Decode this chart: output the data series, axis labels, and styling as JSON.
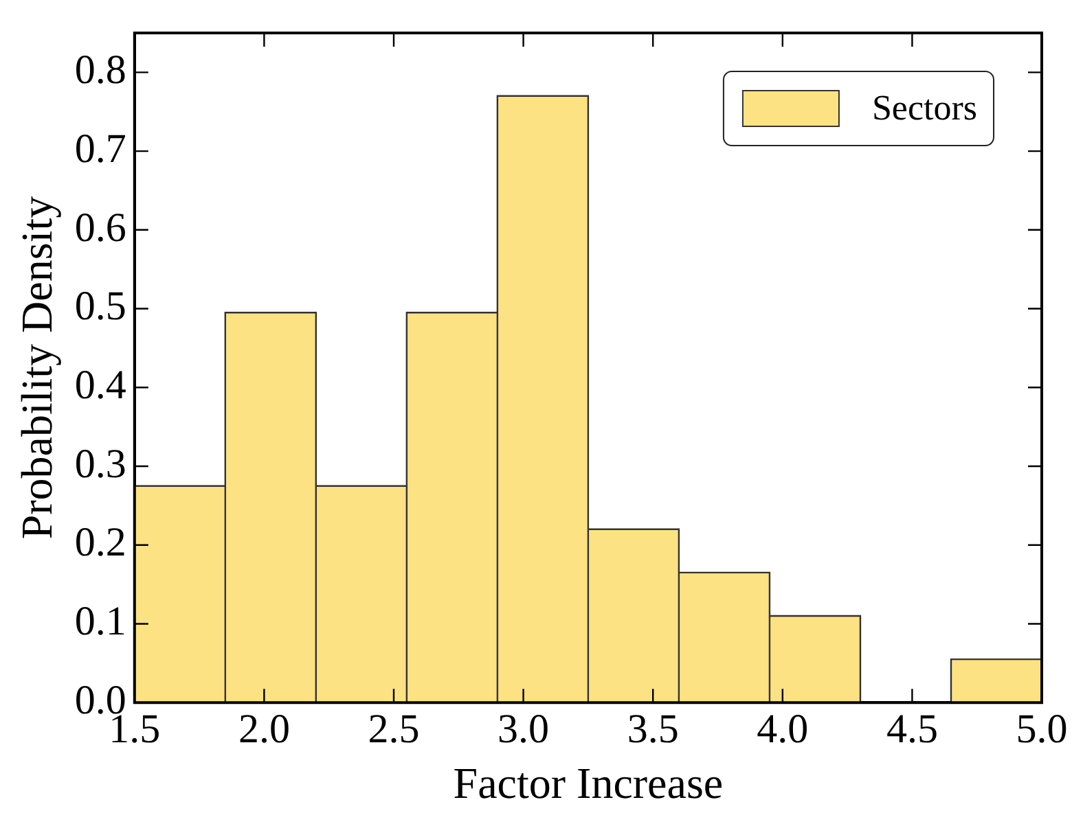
{
  "chart_data": {
    "type": "histogram",
    "xlabel": "Factor Increase",
    "ylabel": "Probability Density",
    "bins": [
      1.5,
      1.85,
      2.2,
      2.55,
      2.9,
      3.25,
      3.6,
      3.95,
      4.3,
      4.65,
      5.0
    ],
    "series": [
      {
        "name": "Sectors",
        "color": "#fce282",
        "values": [
          0.275,
          0.495,
          0.275,
          0.495,
          0.77,
          0.22,
          0.165,
          0.11,
          0,
          0.055
        ]
      }
    ],
    "xlim": [
      1.5,
      5.0
    ],
    "xticks": [
      {
        "value": 1.5,
        "label": "1.5"
      },
      {
        "value": 2,
        "label": "2.0"
      },
      {
        "value": 2.5,
        "label": "2.5"
      },
      {
        "value": 3,
        "label": "3.0"
      },
      {
        "value": 3.5,
        "label": "3.5"
      },
      {
        "value": 4,
        "label": "4.0"
      },
      {
        "value": 4.5,
        "label": "4.5"
      },
      {
        "value": 5,
        "label": "5.0"
      }
    ],
    "ylim": [
      0,
      0.85
    ],
    "yticks": [
      {
        "value": 0,
        "label": "0.0"
      },
      {
        "value": 0.1,
        "label": "0.1"
      },
      {
        "value": 0.2,
        "label": "0.2"
      },
      {
        "value": 0.3,
        "label": "0.3"
      },
      {
        "value": 0.4,
        "label": "0.4"
      },
      {
        "value": 0.5,
        "label": "0.5"
      },
      {
        "value": 0.6,
        "label": "0.6"
      },
      {
        "value": 0.7,
        "label": "0.7"
      },
      {
        "value": 0.8,
        "label": "0.8"
      }
    ],
    "grid": false,
    "legend": "top right"
  }
}
